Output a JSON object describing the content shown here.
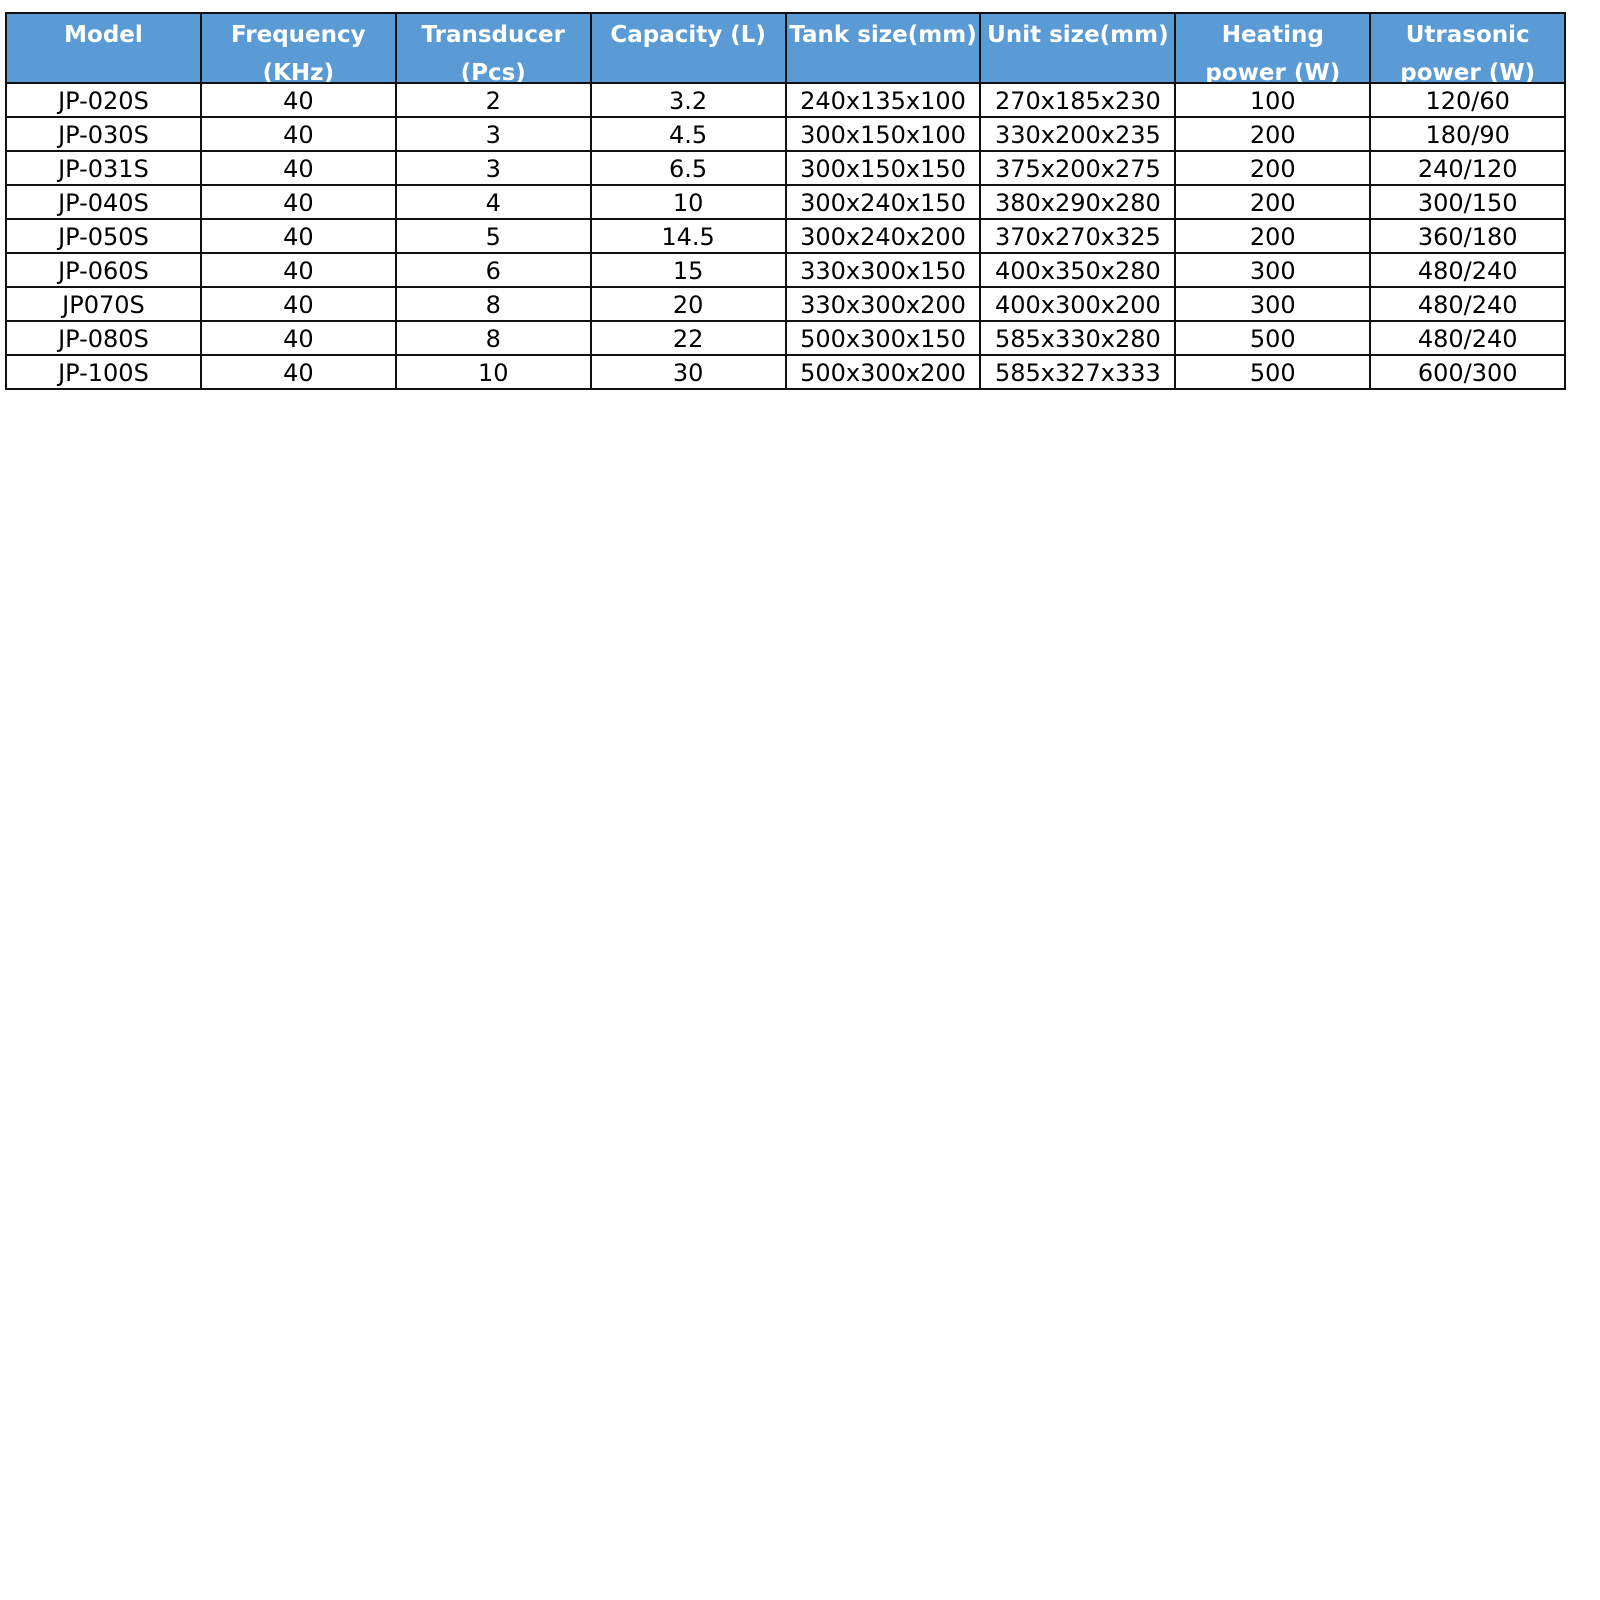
{
  "table": {
    "header_color": "#5b9bd5",
    "columns": [
      "Model",
      "Frequency (KHz)",
      "Transducer (Pcs)",
      "Capacity (L)",
      "Tank size(mm)",
      "Unit size(mm)",
      "Heating power (W)",
      "Utrasonic power (W)"
    ],
    "rows": [
      [
        "JP-020S",
        "40",
        "2",
        "3.2",
        "240x135x100",
        "270x185x230",
        "100",
        "120/60"
      ],
      [
        "JP-030S",
        "40",
        "3",
        "4.5",
        "300x150x100",
        "330x200x235",
        "200",
        "180/90"
      ],
      [
        "JP-031S",
        "40",
        "3",
        "6.5",
        "300x150x150",
        "375x200x275",
        "200",
        "240/120"
      ],
      [
        "JP-040S",
        "40",
        "4",
        "10",
        "300x240x150",
        "380x290x280",
        "200",
        "300/150"
      ],
      [
        "JP-050S",
        "40",
        "5",
        "14.5",
        "300x240x200",
        "370x270x325",
        "200",
        "360/180"
      ],
      [
        "JP-060S",
        "40",
        "6",
        "15",
        "330x300x150",
        "400x350x280",
        "300",
        "480/240"
      ],
      [
        "JP070S",
        "40",
        "8",
        "20",
        "330x300x200",
        "400x300x200",
        "300",
        "480/240"
      ],
      [
        "JP-080S",
        "40",
        "8",
        "22",
        "500x300x150",
        "585x330x280",
        "500",
        "480/240"
      ],
      [
        "JP-100S",
        "40",
        "10",
        "30",
        "500x300x200",
        "585x327x333",
        "500",
        "600/300"
      ]
    ]
  }
}
